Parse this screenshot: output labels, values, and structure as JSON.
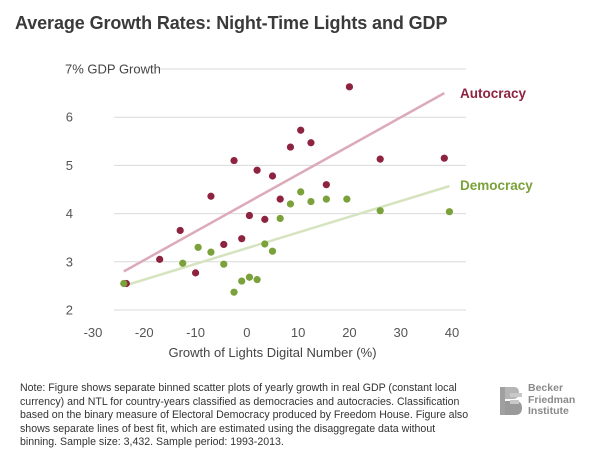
{
  "title": "Average Growth Rates: Night-Time Lights and GDP",
  "chart_data": {
    "type": "scatter",
    "xlabel": "Growth of Lights Digital Number (%)",
    "ylabel": "7% GDP Growth",
    "xlim": [
      -30,
      40
    ],
    "ylim": [
      2,
      7
    ],
    "x_ticks": [
      "-30",
      "-20",
      "-10",
      "0",
      "10",
      "20",
      "30",
      "40"
    ],
    "y_ticks": [
      "2",
      "3",
      "4",
      "5",
      "6"
    ],
    "grid": "horizontal",
    "series": [
      {
        "name": "Autocracy",
        "color": "#8e2340",
        "line_color": "#dcaab8",
        "points": [
          [
            -23.5,
            2.55
          ],
          [
            -17,
            3.05
          ],
          [
            -13,
            3.65
          ],
          [
            -10,
            2.77
          ],
          [
            -7,
            4.36
          ],
          [
            -4.5,
            3.36
          ],
          [
            -2.5,
            5.1
          ],
          [
            -1,
            3.48
          ],
          [
            0.5,
            3.96
          ],
          [
            2,
            4.9
          ],
          [
            3.5,
            3.88
          ],
          [
            5,
            4.78
          ],
          [
            6.5,
            4.3
          ],
          [
            8.5,
            5.38
          ],
          [
            10.5,
            5.73
          ],
          [
            12.5,
            5.47
          ],
          [
            15.5,
            4.6
          ],
          [
            20,
            6.63
          ],
          [
            26,
            5.13
          ],
          [
            38.5,
            5.15
          ]
        ],
        "fit": [
          [
            -24,
            2.8
          ],
          [
            38.5,
            6.5
          ]
        ]
      },
      {
        "name": "Democracy",
        "color": "#7aa13a",
        "line_color": "#d6e3bf",
        "points": [
          [
            -24,
            2.55
          ],
          [
            -12.5,
            2.97
          ],
          [
            -9.5,
            3.3
          ],
          [
            -7,
            3.2
          ],
          [
            -4.5,
            2.95
          ],
          [
            -2.5,
            2.37
          ],
          [
            -1,
            2.6
          ],
          [
            0.5,
            2.68
          ],
          [
            2,
            2.63
          ],
          [
            3.5,
            3.37
          ],
          [
            5,
            3.22
          ],
          [
            6.5,
            3.9
          ],
          [
            8.5,
            4.2
          ],
          [
            10.5,
            4.45
          ],
          [
            12.5,
            4.25
          ],
          [
            15.5,
            4.3
          ],
          [
            19.5,
            4.3
          ],
          [
            26,
            4.06
          ],
          [
            39.5,
            4.04
          ]
        ],
        "fit": [
          [
            -24,
            2.5
          ],
          [
            39.5,
            4.57
          ]
        ]
      }
    ]
  },
  "note": "Note: Figure shows separate binned scatter plots of yearly growth in real GDP (constant local currency) and NTL for country-years classified as democracies and autocracies. Classification based on the binary measure of Electoral Democracy produced by Freedom House. Figure also shows separate lines of best fit, which are estimated using the disaggregate data without binning. Sample size: 3,432. Sample period: 1993-2013.",
  "logo": {
    "line1": "Becker",
    "line2": "Friedman",
    "line3": "Institute",
    "color": "#8a8a8a"
  }
}
